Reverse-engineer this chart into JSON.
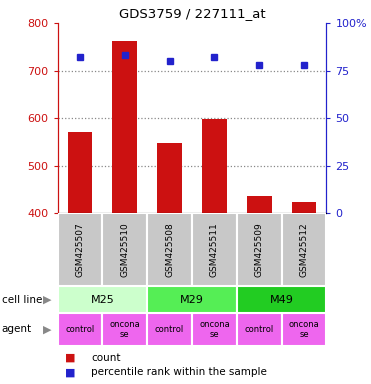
{
  "title": "GDS3759 / 227111_at",
  "samples": [
    "GSM425507",
    "GSM425510",
    "GSM425508",
    "GSM425511",
    "GSM425509",
    "GSM425512"
  ],
  "counts": [
    570,
    762,
    547,
    598,
    437,
    424
  ],
  "percentile_ranks": [
    82,
    83,
    80,
    82,
    78,
    78
  ],
  "ylim_left": [
    400,
    800
  ],
  "ylim_right": [
    0,
    100
  ],
  "yticks_left": [
    400,
    500,
    600,
    700,
    800
  ],
  "yticks_right": [
    0,
    25,
    50,
    75,
    100
  ],
  "bar_color": "#cc1111",
  "dot_color": "#2222cc",
  "bar_bottom": 400,
  "cell_lines": [
    {
      "label": "M25",
      "span": [
        0,
        2
      ],
      "color": "#ccffcc"
    },
    {
      "label": "M29",
      "span": [
        2,
        4
      ],
      "color": "#55ee55"
    },
    {
      "label": "M49",
      "span": [
        4,
        6
      ],
      "color": "#22cc22"
    }
  ],
  "agents": [
    {
      "label": "control"
    },
    {
      "label": "oncona\nse"
    },
    {
      "label": "control"
    },
    {
      "label": "oncona\nse"
    },
    {
      "label": "control"
    },
    {
      "label": "oncona\nse"
    }
  ],
  "agent_color": "#ee66ee",
  "bg_color": "#c8c8c8",
  "left_label_color": "#cc1111",
  "right_label_color": "#2222cc",
  "dotted_line_color": "#888888",
  "legend_count_color": "#cc1111",
  "legend_pct_color": "#2222cc"
}
